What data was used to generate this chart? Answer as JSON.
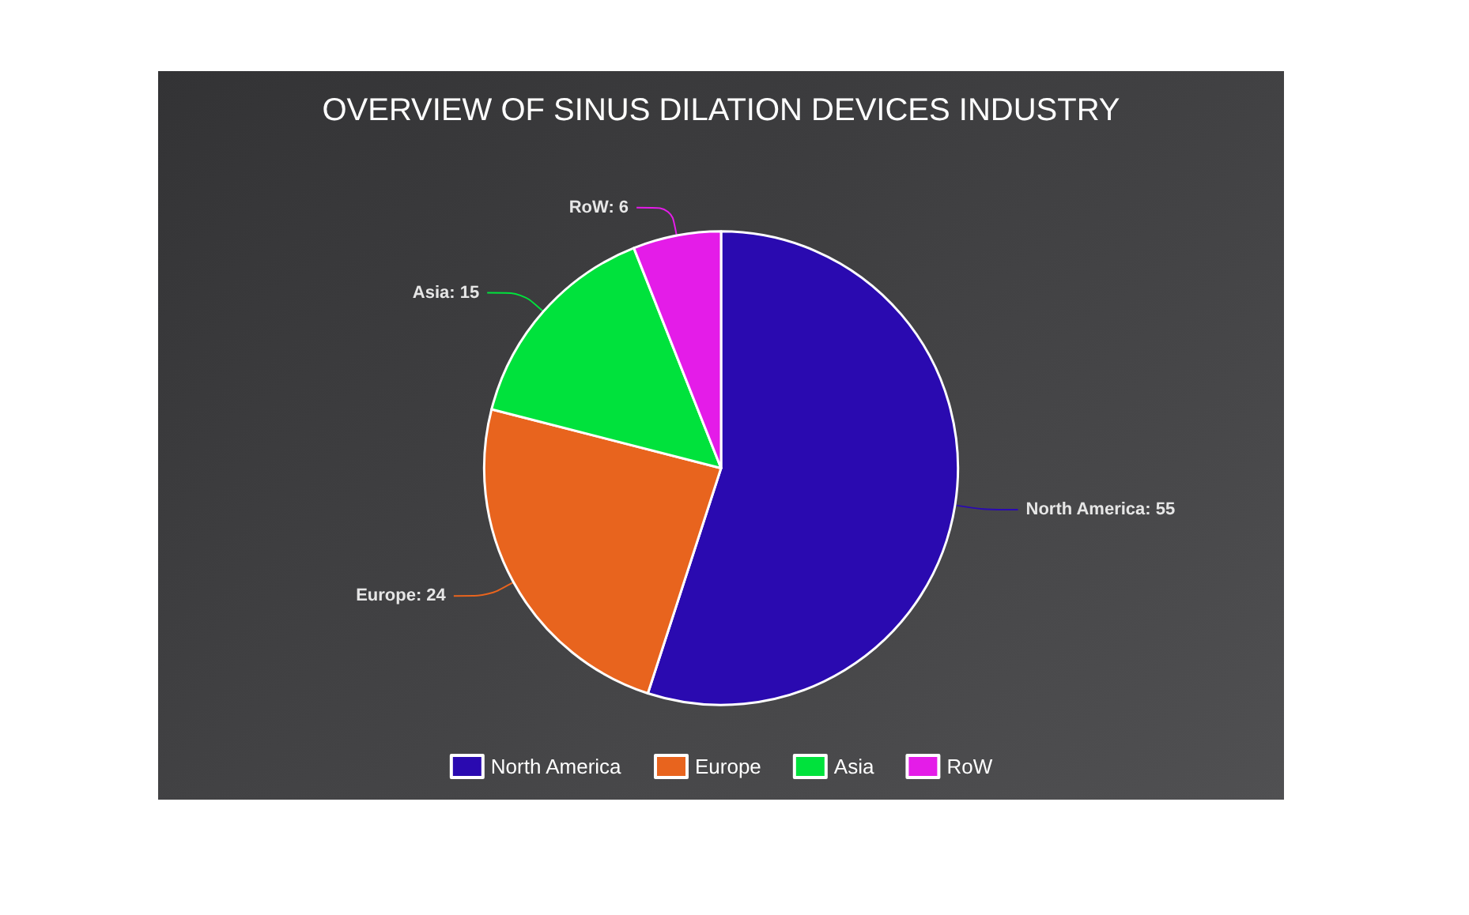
{
  "chart_data": {
    "type": "pie",
    "title": "OVERVIEW OF SINUS DILATION DEVICES INDUSTRY",
    "categories": [
      "North America",
      "Europe",
      "Asia",
      "RoW"
    ],
    "values": [
      55,
      24,
      15,
      6
    ],
    "colors": [
      "#2a0ab0",
      "#e8641e",
      "#00e23c",
      "#e41ce8"
    ],
    "value_labels": [
      "North America: 55",
      "Europe: 24",
      "Asia: 15",
      "RoW: 6"
    ],
    "legend": "bottom"
  }
}
